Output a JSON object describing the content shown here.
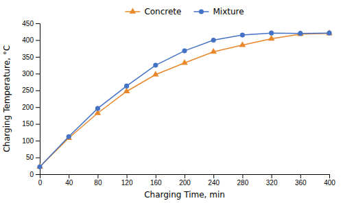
{
  "chart_data": {
    "type": "line",
    "x_label": "Charging Time, min",
    "y_label": "Charging Temperature, °C",
    "x": [
      0,
      40,
      80,
      120,
      160,
      200,
      240,
      280,
      320,
      360,
      400
    ],
    "series": [
      {
        "name": "Concrete",
        "color": "#E8882A",
        "marker": "triangle",
        "values": [
          22,
          108,
          182,
          247,
          297,
          332,
          365,
          385,
          404,
          418,
          420
        ]
      },
      {
        "name": "Mixture",
        "color": "#4472C4",
        "marker": "circle",
        "values": [
          22,
          112,
          196,
          263,
          325,
          368,
          400,
          415,
          421,
          420,
          421
        ]
      }
    ],
    "xlim": [
      0,
      400
    ],
    "ylim": [
      0,
      450
    ],
    "xticks": [
      0,
      40,
      80,
      120,
      160,
      200,
      240,
      280,
      320,
      360,
      400
    ],
    "yticks": [
      0,
      50,
      100,
      150,
      200,
      250,
      300,
      350,
      400,
      450
    ],
    "legend": "top",
    "grid": false
  }
}
